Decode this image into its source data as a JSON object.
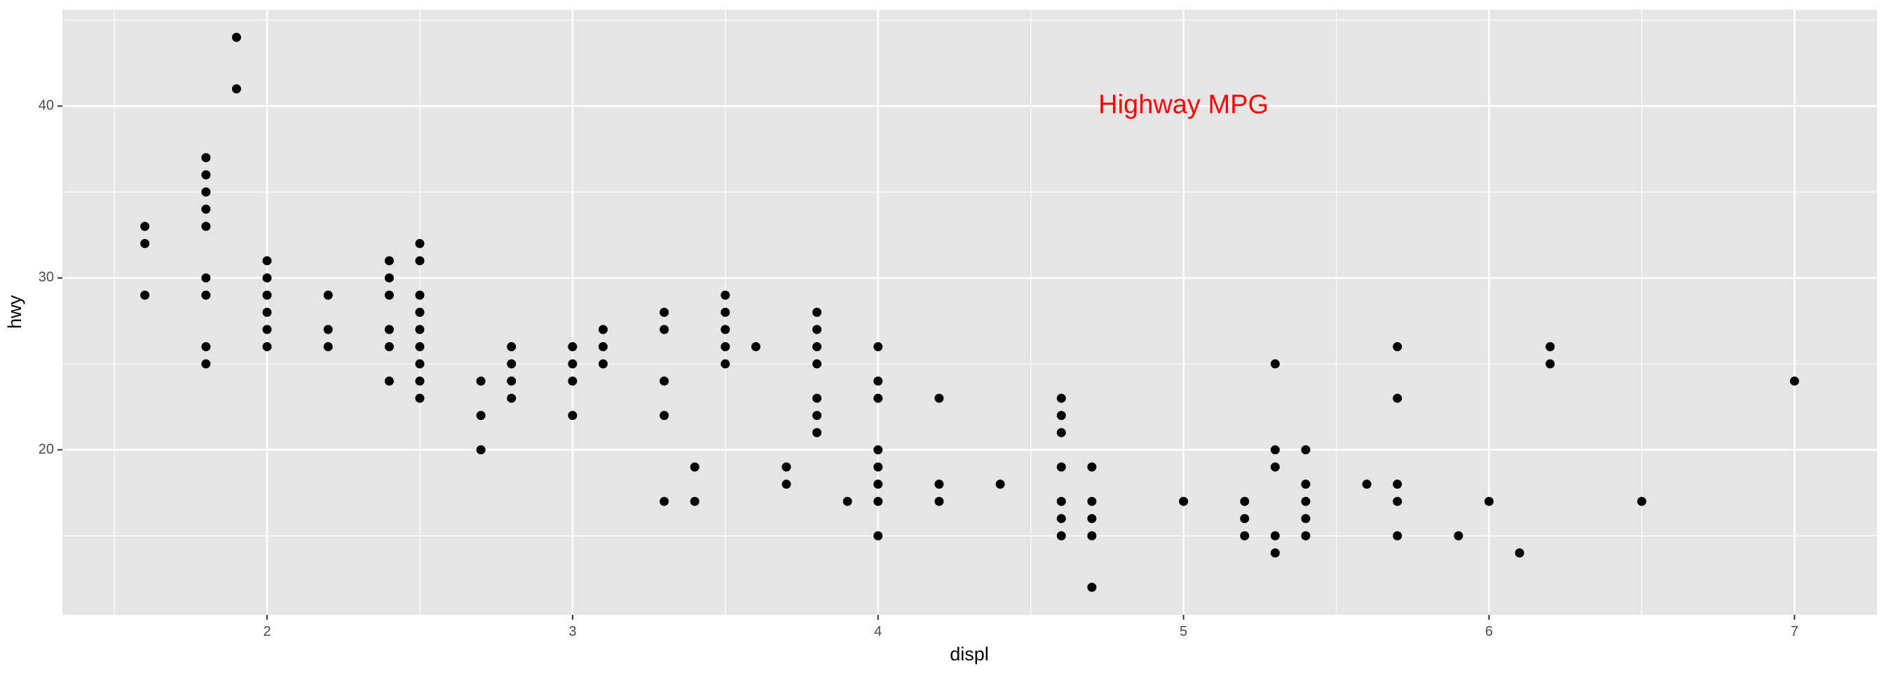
{
  "chart_data": {
    "type": "scatter",
    "xlabel": "displ",
    "ylabel": "hwy",
    "xlim": [
      1.33,
      7.27
    ],
    "ylim": [
      10.4,
      45.6
    ],
    "x_ticks": [
      2,
      3,
      4,
      5,
      6,
      7
    ],
    "y_ticks": [
      20,
      30,
      40
    ],
    "x_tick_labels": [
      "2",
      "3",
      "4",
      "5",
      "6",
      "7"
    ],
    "y_tick_labels": [
      "20",
      "30",
      "40"
    ],
    "grid": true,
    "annotation": {
      "text": "Highway MPG",
      "x": 5.0,
      "y": 40,
      "color": "#ff0000"
    },
    "colors": {
      "panel": "#e5e5e5",
      "grid": "#ffffff",
      "point": "#000000"
    },
    "points": [
      [
        1.6,
        33
      ],
      [
        1.6,
        32
      ],
      [
        1.6,
        29
      ],
      [
        1.8,
        37
      ],
      [
        1.8,
        36
      ],
      [
        1.8,
        35
      ],
      [
        1.8,
        34
      ],
      [
        1.8,
        33
      ],
      [
        1.8,
        30
      ],
      [
        1.8,
        29
      ],
      [
        1.8,
        26
      ],
      [
        1.8,
        25
      ],
      [
        1.9,
        44
      ],
      [
        1.9,
        41
      ],
      [
        2.0,
        31
      ],
      [
        2.0,
        30
      ],
      [
        2.0,
        29
      ],
      [
        2.0,
        28
      ],
      [
        2.0,
        27
      ],
      [
        2.0,
        26
      ],
      [
        2.2,
        29
      ],
      [
        2.2,
        27
      ],
      [
        2.2,
        26
      ],
      [
        2.4,
        31
      ],
      [
        2.4,
        30
      ],
      [
        2.4,
        29
      ],
      [
        2.4,
        27
      ],
      [
        2.4,
        26
      ],
      [
        2.4,
        24
      ],
      [
        2.5,
        32
      ],
      [
        2.5,
        31
      ],
      [
        2.5,
        29
      ],
      [
        2.5,
        28
      ],
      [
        2.5,
        27
      ],
      [
        2.5,
        26
      ],
      [
        2.5,
        25
      ],
      [
        2.5,
        24
      ],
      [
        2.5,
        23
      ],
      [
        2.7,
        24
      ],
      [
        2.7,
        22
      ],
      [
        2.7,
        20
      ],
      [
        2.8,
        26
      ],
      [
        2.8,
        25
      ],
      [
        2.8,
        24
      ],
      [
        2.8,
        23
      ],
      [
        3.0,
        26
      ],
      [
        3.0,
        25
      ],
      [
        3.0,
        24
      ],
      [
        3.0,
        22
      ],
      [
        3.1,
        27
      ],
      [
        3.1,
        26
      ],
      [
        3.1,
        25
      ],
      [
        3.3,
        28
      ],
      [
        3.3,
        27
      ],
      [
        3.3,
        24
      ],
      [
        3.3,
        22
      ],
      [
        3.3,
        17
      ],
      [
        3.4,
        19
      ],
      [
        3.4,
        17
      ],
      [
        3.5,
        29
      ],
      [
        3.5,
        28
      ],
      [
        3.5,
        27
      ],
      [
        3.5,
        26
      ],
      [
        3.5,
        25
      ],
      [
        3.6,
        26
      ],
      [
        3.7,
        19
      ],
      [
        3.7,
        18
      ],
      [
        3.8,
        28
      ],
      [
        3.8,
        27
      ],
      [
        3.8,
        26
      ],
      [
        3.8,
        25
      ],
      [
        3.8,
        23
      ],
      [
        3.8,
        22
      ],
      [
        3.8,
        21
      ],
      [
        3.9,
        17
      ],
      [
        4.0,
        26
      ],
      [
        4.0,
        24
      ],
      [
        4.0,
        23
      ],
      [
        4.0,
        20
      ],
      [
        4.0,
        19
      ],
      [
        4.0,
        18
      ],
      [
        4.0,
        17
      ],
      [
        4.0,
        15
      ],
      [
        4.2,
        23
      ],
      [
        4.2,
        18
      ],
      [
        4.2,
        17
      ],
      [
        4.4,
        18
      ],
      [
        4.6,
        23
      ],
      [
        4.6,
        22
      ],
      [
        4.6,
        21
      ],
      [
        4.6,
        19
      ],
      [
        4.6,
        17
      ],
      [
        4.6,
        16
      ],
      [
        4.6,
        15
      ],
      [
        4.7,
        19
      ],
      [
        4.7,
        17
      ],
      [
        4.7,
        16
      ],
      [
        4.7,
        15
      ],
      [
        4.7,
        12
      ],
      [
        5.0,
        17
      ],
      [
        5.2,
        17
      ],
      [
        5.2,
        16
      ],
      [
        5.2,
        15
      ],
      [
        5.3,
        25
      ],
      [
        5.3,
        20
      ],
      [
        5.3,
        19
      ],
      [
        5.3,
        15
      ],
      [
        5.3,
        14
      ],
      [
        5.4,
        20
      ],
      [
        5.4,
        18
      ],
      [
        5.4,
        17
      ],
      [
        5.4,
        16
      ],
      [
        5.4,
        15
      ],
      [
        5.6,
        18
      ],
      [
        5.7,
        26
      ],
      [
        5.7,
        23
      ],
      [
        5.7,
        18
      ],
      [
        5.7,
        17
      ],
      [
        5.7,
        15
      ],
      [
        5.9,
        15
      ],
      [
        6.0,
        17
      ],
      [
        6.1,
        14
      ],
      [
        6.2,
        26
      ],
      [
        6.2,
        25
      ],
      [
        6.5,
        17
      ],
      [
        7.0,
        24
      ]
    ]
  }
}
